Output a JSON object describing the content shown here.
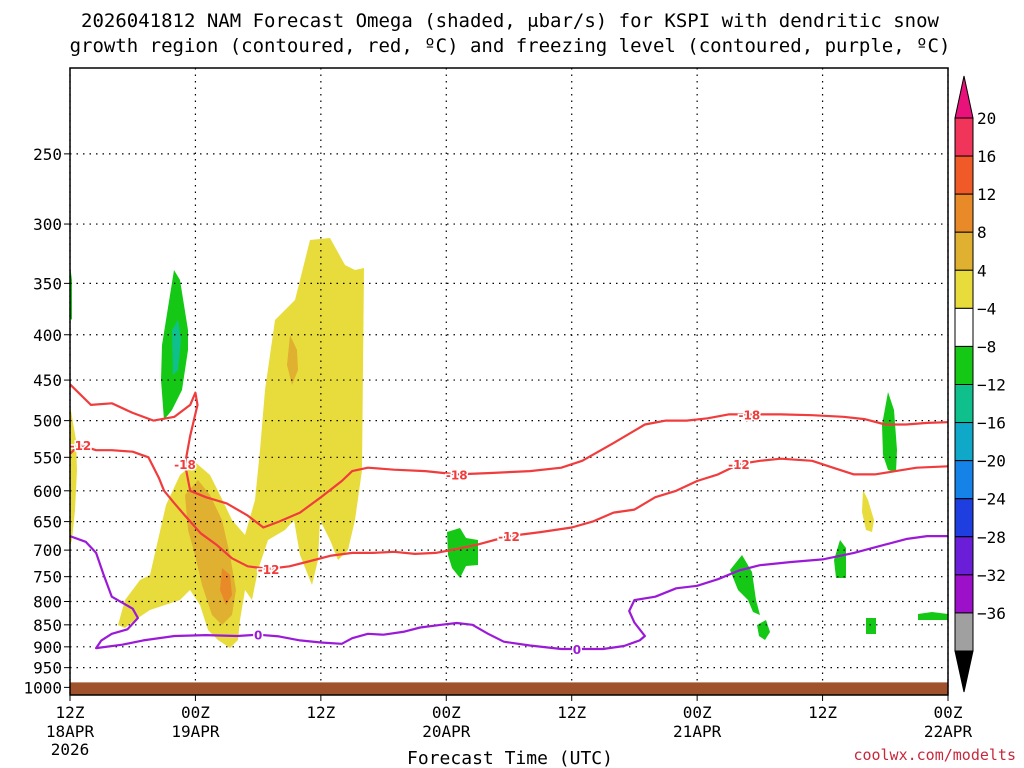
{
  "title_line1": "2026041812 NAM Forecast Omega (shaded, μbar/s) for KSPI with dendritic snow",
  "title_line2": "growth region (contoured, red, ºC) and freezing level (contoured, purple, ºC)",
  "xlabel": "Forecast Time (UTC)",
  "credit": "coolwx.com/modelts",
  "colors": {
    "temp_contour": "#f03c3c",
    "freezing_contour": "#9b1ad8",
    "ground": "#a0522d",
    "grid": "#000000"
  },
  "chart_data": {
    "type": "area",
    "title": "2026041812 NAM Forecast Omega (shaded, μbar/s) for KSPI with dendritic snow growth region (contoured, red, ºC) and freezing level (contoured, purple, ºC)",
    "xlabel": "Forecast Time (UTC)",
    "ylabel": "",
    "y_scale": "log",
    "y_reversed": true,
    "ylim": [
      1020,
      200
    ],
    "xlim": [
      "2026-04-18 12Z",
      "2026-04-22 00Z"
    ],
    "grid": true,
    "y_ticks": [
      250,
      300,
      350,
      400,
      450,
      500,
      550,
      600,
      650,
      700,
      750,
      800,
      850,
      900,
      950,
      1000
    ],
    "x_ticks": [
      {
        "hour": 0,
        "label": "12Z",
        "sub": "18APR",
        "sub2": "2026"
      },
      {
        "hour": 12,
        "label": "00Z",
        "sub": "19APR"
      },
      {
        "hour": 24,
        "label": "12Z",
        "sub": ""
      },
      {
        "hour": 36,
        "label": "00Z",
        "sub": "20APR"
      },
      {
        "hour": 48,
        "label": "12Z",
        "sub": ""
      },
      {
        "hour": 60,
        "label": "00Z",
        "sub": "21APR"
      },
      {
        "hour": 72,
        "label": "12Z",
        "sub": ""
      },
      {
        "hour": 84,
        "label": "00Z",
        "sub": "22APR"
      }
    ],
    "colorbar": {
      "labels": [
        "20",
        "16",
        "12",
        "8",
        "4",
        "−4",
        "−8",
        "−12",
        "−16",
        "−20",
        "−24",
        "−28",
        "−32",
        "−36"
      ],
      "colors": [
        "#f0345a",
        "#f05a28",
        "#e88a28",
        "#e0b030",
        "#e8dc3c",
        "#ffffff",
        "#16c816",
        "#10c08c",
        "#10a8c8",
        "#1482e6",
        "#1e3ee0",
        "#6a1ed8",
        "#9b10c8",
        "#a0a0a0"
      ],
      "top_color": "#e8127a",
      "bottom_color": "#000000"
    },
    "series": [
      {
        "name": "-18",
        "kind": "contour",
        "color": "#f03c3c",
        "label_hours": [
          11,
          37.5,
          66.5
        ],
        "points": [
          [
            0,
            455
          ],
          [
            2,
            480
          ],
          [
            4,
            478
          ],
          [
            6,
            490
          ],
          [
            8,
            500
          ],
          [
            10,
            495
          ],
          [
            11.5,
            480
          ],
          [
            12,
            465
          ],
          [
            12.2,
            480
          ],
          [
            11.5,
            520
          ],
          [
            11,
            560
          ],
          [
            11.5,
            600
          ],
          [
            13,
            610
          ],
          [
            15,
            620
          ],
          [
            17,
            640
          ],
          [
            18.5,
            660
          ],
          [
            20,
            650
          ],
          [
            22,
            635
          ],
          [
            24,
            610
          ],
          [
            26,
            585
          ],
          [
            27,
            570
          ],
          [
            28.5,
            565
          ],
          [
            31,
            568
          ],
          [
            34,
            570
          ],
          [
            37,
            575
          ],
          [
            40,
            573
          ],
          [
            44,
            570
          ],
          [
            47,
            565
          ],
          [
            49,
            555
          ],
          [
            52,
            530
          ],
          [
            55,
            505
          ],
          [
            57,
            500
          ],
          [
            59,
            500
          ],
          [
            61,
            497
          ],
          [
            63,
            492
          ],
          [
            65,
            492
          ],
          [
            68,
            492
          ],
          [
            71,
            493
          ],
          [
            74,
            495
          ],
          [
            76,
            498
          ],
          [
            78,
            505
          ],
          [
            80,
            505
          ],
          [
            82,
            503
          ],
          [
            84,
            502
          ]
        ]
      },
      {
        "name": "-12",
        "kind": "contour",
        "color": "#f03c3c",
        "label_hours": [
          1.5,
          20,
          43.5,
          65
        ],
        "points": [
          [
            0,
            545
          ],
          [
            0.5,
            538
          ],
          [
            1,
            533
          ],
          [
            2.5,
            540
          ],
          [
            4,
            540
          ],
          [
            6,
            542
          ],
          [
            7.5,
            550
          ],
          [
            8.5,
            580
          ],
          [
            9,
            600
          ],
          [
            10,
            620
          ],
          [
            11,
            640
          ],
          [
            12.5,
            670
          ],
          [
            14,
            690
          ],
          [
            15.5,
            715
          ],
          [
            17,
            730
          ],
          [
            19,
            735
          ],
          [
            21,
            730
          ],
          [
            23,
            720
          ],
          [
            25,
            710
          ],
          [
            27,
            705
          ],
          [
            29,
            705
          ],
          [
            31,
            703
          ],
          [
            33,
            707
          ],
          [
            35,
            705
          ],
          [
            37,
            698
          ],
          [
            39,
            690
          ],
          [
            42,
            675
          ],
          [
            45,
            668
          ],
          [
            48,
            660
          ],
          [
            50,
            650
          ],
          [
            52,
            635
          ],
          [
            54,
            630
          ],
          [
            56,
            610
          ],
          [
            58,
            600
          ],
          [
            60,
            585
          ],
          [
            62,
            575
          ],
          [
            64,
            560
          ],
          [
            66,
            555
          ],
          [
            68,
            552
          ],
          [
            71,
            555
          ],
          [
            73,
            565
          ],
          [
            75,
            575
          ],
          [
            77,
            575
          ],
          [
            79,
            570
          ],
          [
            81,
            565
          ],
          [
            84,
            563
          ]
        ]
      },
      {
        "name": "0",
        "kind": "contour",
        "color": "#9b1ad8",
        "label_hours": [
          18,
          48
        ],
        "points": [
          [
            0,
            675
          ],
          [
            1.5,
            685
          ],
          [
            2.5,
            705
          ],
          [
            3.2,
            745
          ],
          [
            4,
            790
          ],
          [
            6,
            815
          ],
          [
            6.5,
            835
          ],
          [
            5.5,
            860
          ],
          [
            4,
            870
          ],
          [
            3,
            885
          ],
          [
            2.5,
            903
          ],
          [
            5,
            895
          ],
          [
            7,
            885
          ],
          [
            10,
            875
          ],
          [
            13,
            873
          ],
          [
            16,
            875
          ],
          [
            18,
            872
          ],
          [
            20,
            876
          ],
          [
            22,
            885
          ],
          [
            24,
            890
          ],
          [
            26,
            893
          ],
          [
            27,
            880
          ],
          [
            28.5,
            870
          ],
          [
            30,
            872
          ],
          [
            32,
            865
          ],
          [
            33.5,
            856
          ],
          [
            35.5,
            850
          ],
          [
            37,
            846
          ],
          [
            38.5,
            850
          ],
          [
            40,
            870
          ],
          [
            41.5,
            888
          ],
          [
            44,
            897
          ],
          [
            47,
            905
          ],
          [
            48.5,
            905
          ],
          [
            51,
            905
          ],
          [
            53,
            898
          ],
          [
            54.5,
            885
          ],
          [
            55,
            875
          ],
          [
            54,
            845
          ],
          [
            53.5,
            820
          ],
          [
            54,
            797
          ],
          [
            56,
            790
          ],
          [
            58,
            773
          ],
          [
            60,
            768
          ],
          [
            62,
            755
          ],
          [
            64,
            738
          ],
          [
            66,
            728
          ],
          [
            69,
            722
          ],
          [
            72,
            717
          ],
          [
            75,
            705
          ],
          [
            78,
            690
          ],
          [
            80,
            680
          ],
          [
            82,
            675
          ],
          [
            84,
            675
          ]
        ]
      }
    ]
  }
}
